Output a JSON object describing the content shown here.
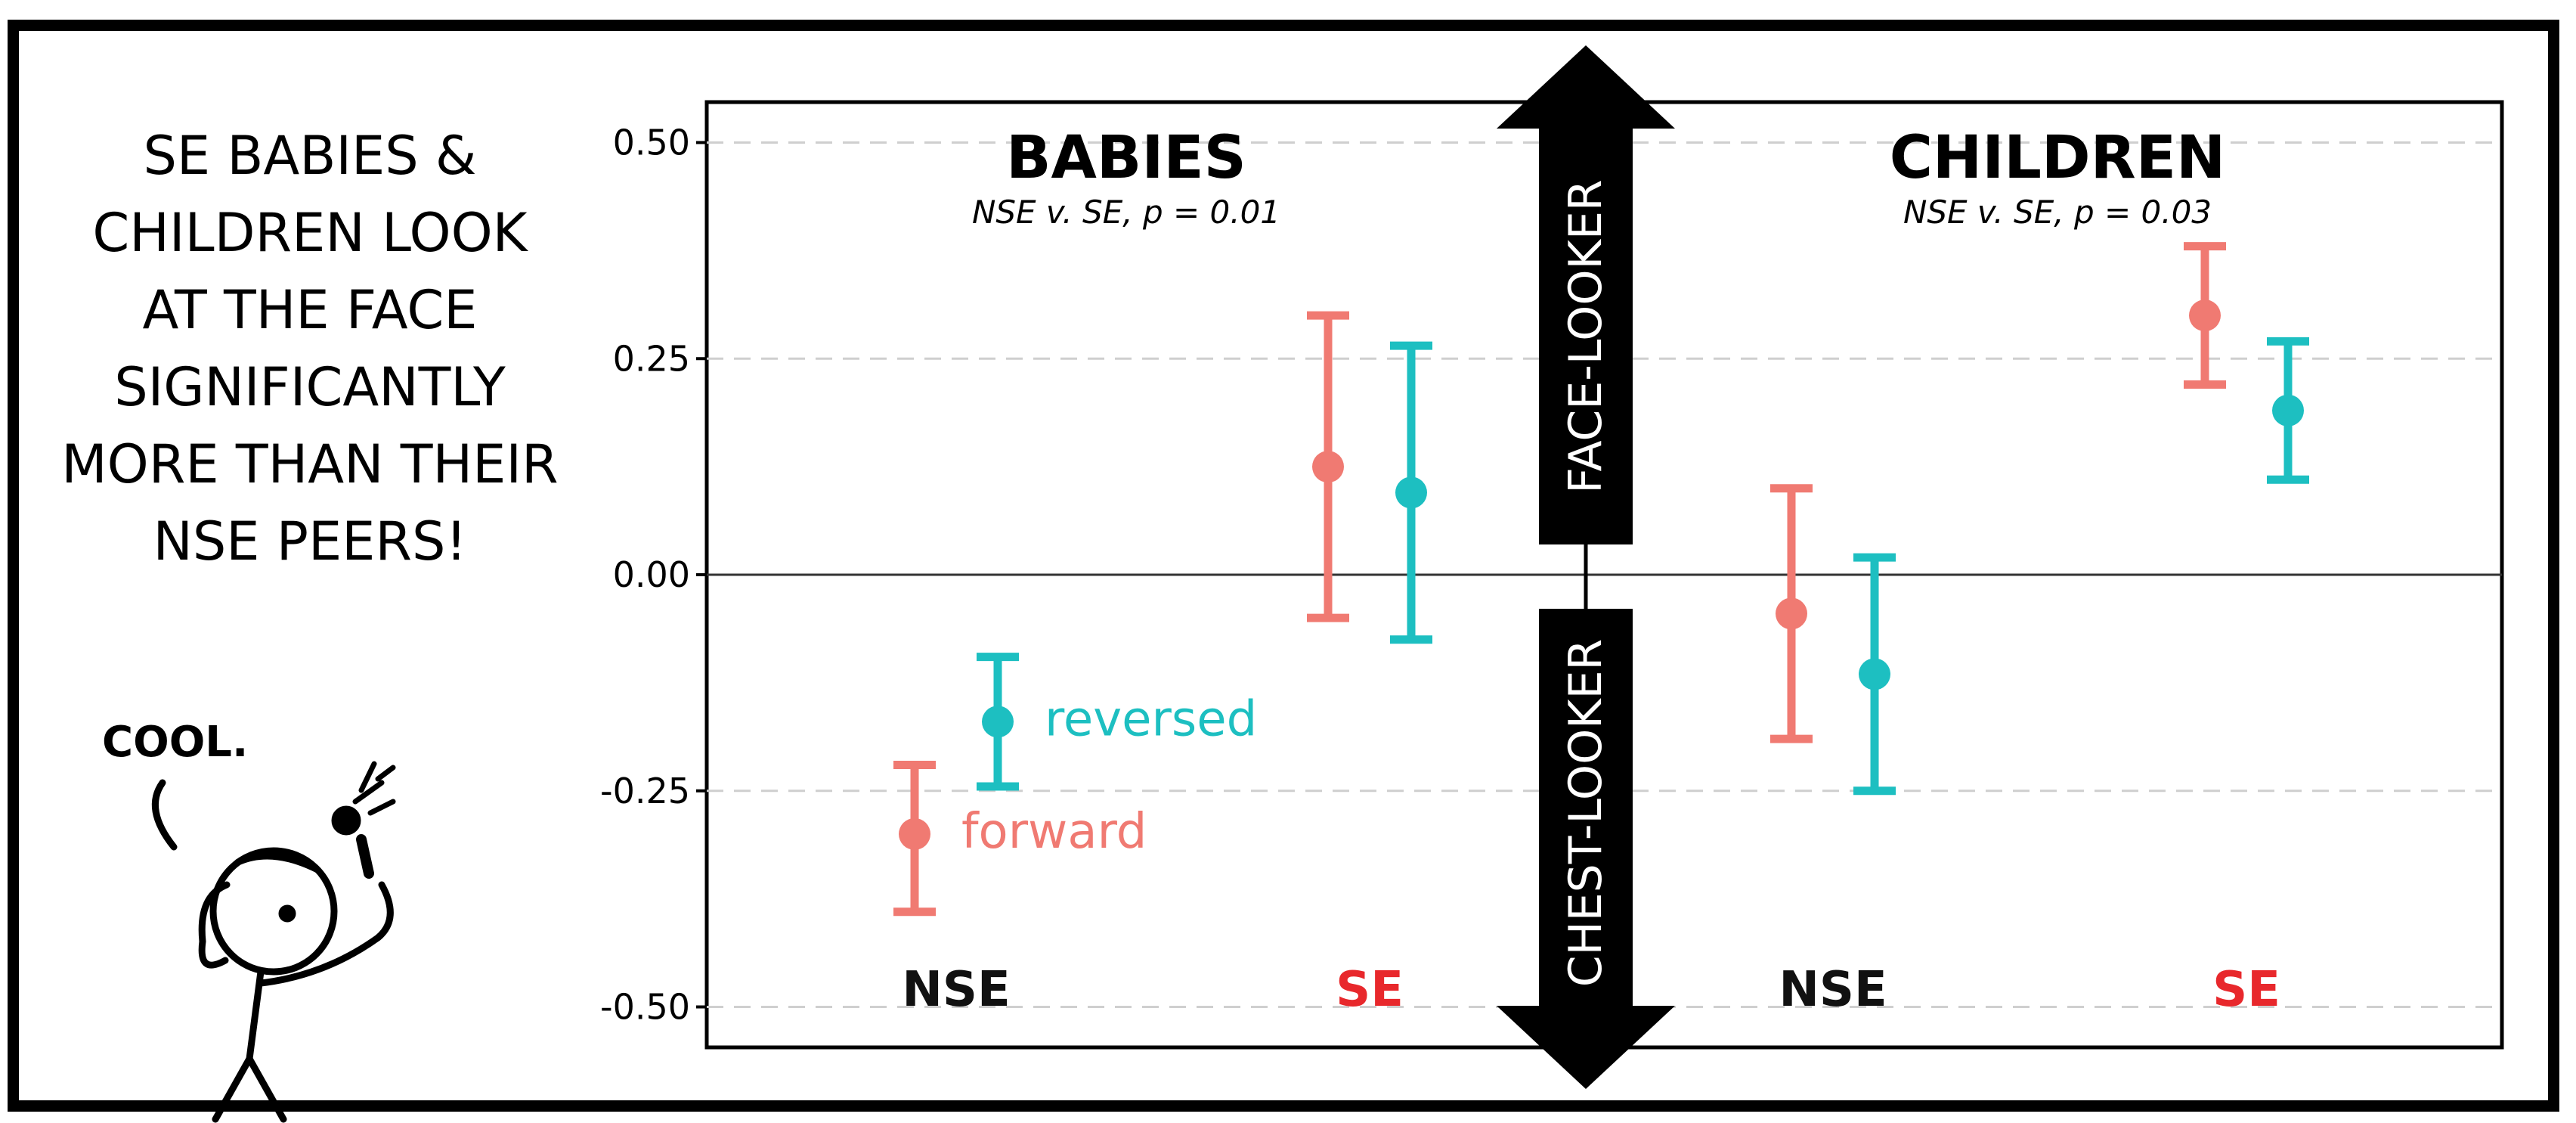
{
  "comic": {
    "caption_lines": [
      "SE BABIES &",
      "CHILDREN LOOK",
      "AT THE FACE",
      "SIGNIFICANTLY",
      "MORE THAN THEIR",
      "NSE PEERS!"
    ],
    "speech": "COOL."
  },
  "arrows": {
    "up_label": "FACE-LOOKER",
    "down_label": "CHEST-LOOKER"
  },
  "colors": {
    "forward": "#F07A72",
    "reversed": "#1DBFC1",
    "se_label": "#E8282C",
    "nse_label": "#111111"
  },
  "chart_data": {
    "type": "scatter",
    "subtype": "point-errorbar",
    "yticks": [
      "0.50",
      "0.25",
      "0.00",
      "-0.25",
      "-0.50"
    ],
    "ylim": [
      -0.55,
      0.55
    ],
    "panels": [
      {
        "title": "BABIES",
        "subtitle": "NSE v. SE, p = 0.01",
        "groups": [
          "NSE",
          "SE"
        ]
      },
      {
        "title": "CHILDREN",
        "subtitle": "NSE v. SE, p = 0.03",
        "groups": [
          "NSE",
          "SE"
        ]
      }
    ],
    "series": [
      {
        "name": "forward",
        "color": "#F07A72",
        "points": [
          {
            "panel": "BABIES",
            "group": "NSE",
            "y": -0.3,
            "low": -0.39,
            "high": -0.22
          },
          {
            "panel": "BABIES",
            "group": "SE",
            "y": 0.125,
            "low": -0.05,
            "high": 0.3
          },
          {
            "panel": "CHILDREN",
            "group": "NSE",
            "y": -0.045,
            "low": -0.19,
            "high": 0.1
          },
          {
            "panel": "CHILDREN",
            "group": "SE",
            "y": 0.3,
            "low": 0.22,
            "high": 0.38
          }
        ]
      },
      {
        "name": "reversed",
        "color": "#1DBFC1",
        "points": [
          {
            "panel": "BABIES",
            "group": "NSE",
            "y": -0.17,
            "low": -0.245,
            "high": -0.095
          },
          {
            "panel": "BABIES",
            "group": "SE",
            "y": 0.095,
            "low": -0.075,
            "high": 0.265
          },
          {
            "panel": "CHILDREN",
            "group": "NSE",
            "y": -0.115,
            "low": -0.25,
            "high": 0.02
          },
          {
            "panel": "CHILDREN",
            "group": "SE",
            "y": 0.19,
            "low": 0.11,
            "high": 0.27
          }
        ]
      }
    ],
    "inline_labels": [
      "reversed",
      "forward"
    ],
    "grid": true,
    "zero_line": true
  }
}
